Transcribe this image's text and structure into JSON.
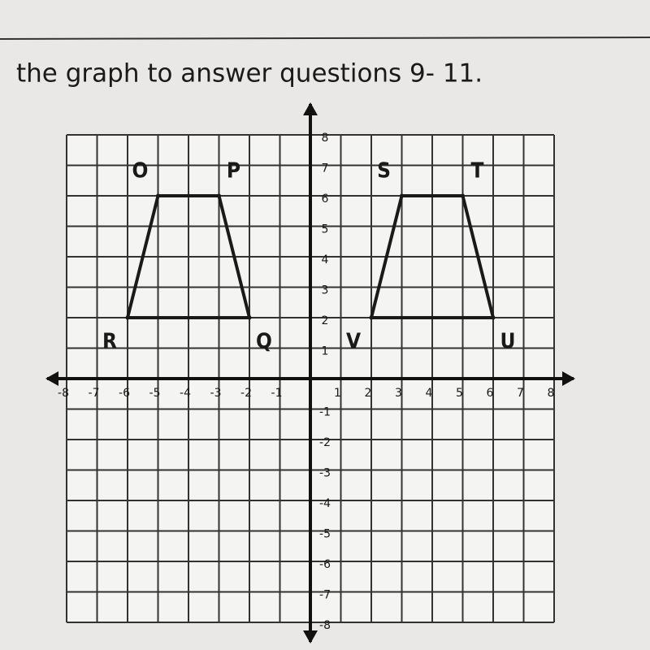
{
  "heading": "the graph to answer questions 9- 11.",
  "chart_data": {
    "type": "polygon",
    "xlim": [
      -8,
      8
    ],
    "ylim": [
      -8,
      8
    ],
    "xticks": [
      -8,
      -7,
      -6,
      -5,
      -4,
      -3,
      -2,
      -1,
      1,
      2,
      3,
      4,
      5,
      6,
      7,
      8
    ],
    "yticks": [
      -8,
      -7,
      -6,
      -5,
      -4,
      -3,
      -2,
      -1,
      1,
      2,
      3,
      4,
      5,
      6,
      7,
      8
    ],
    "grid": true,
    "color": "#1a1a1a",
    "shapes": [
      {
        "vertices": [
          {
            "label": "O",
            "x": -5,
            "y": 6
          },
          {
            "label": "P",
            "x": -3,
            "y": 6
          },
          {
            "label": "Q",
            "x": -2,
            "y": 2
          },
          {
            "label": "R",
            "x": -6,
            "y": 2
          }
        ]
      },
      {
        "vertices": [
          {
            "label": "S",
            "x": 3,
            "y": 6
          },
          {
            "label": "T",
            "x": 5,
            "y": 6
          },
          {
            "label": "U",
            "x": 6,
            "y": 2
          },
          {
            "label": "V",
            "x": 2,
            "y": 2
          }
        ]
      }
    ]
  }
}
